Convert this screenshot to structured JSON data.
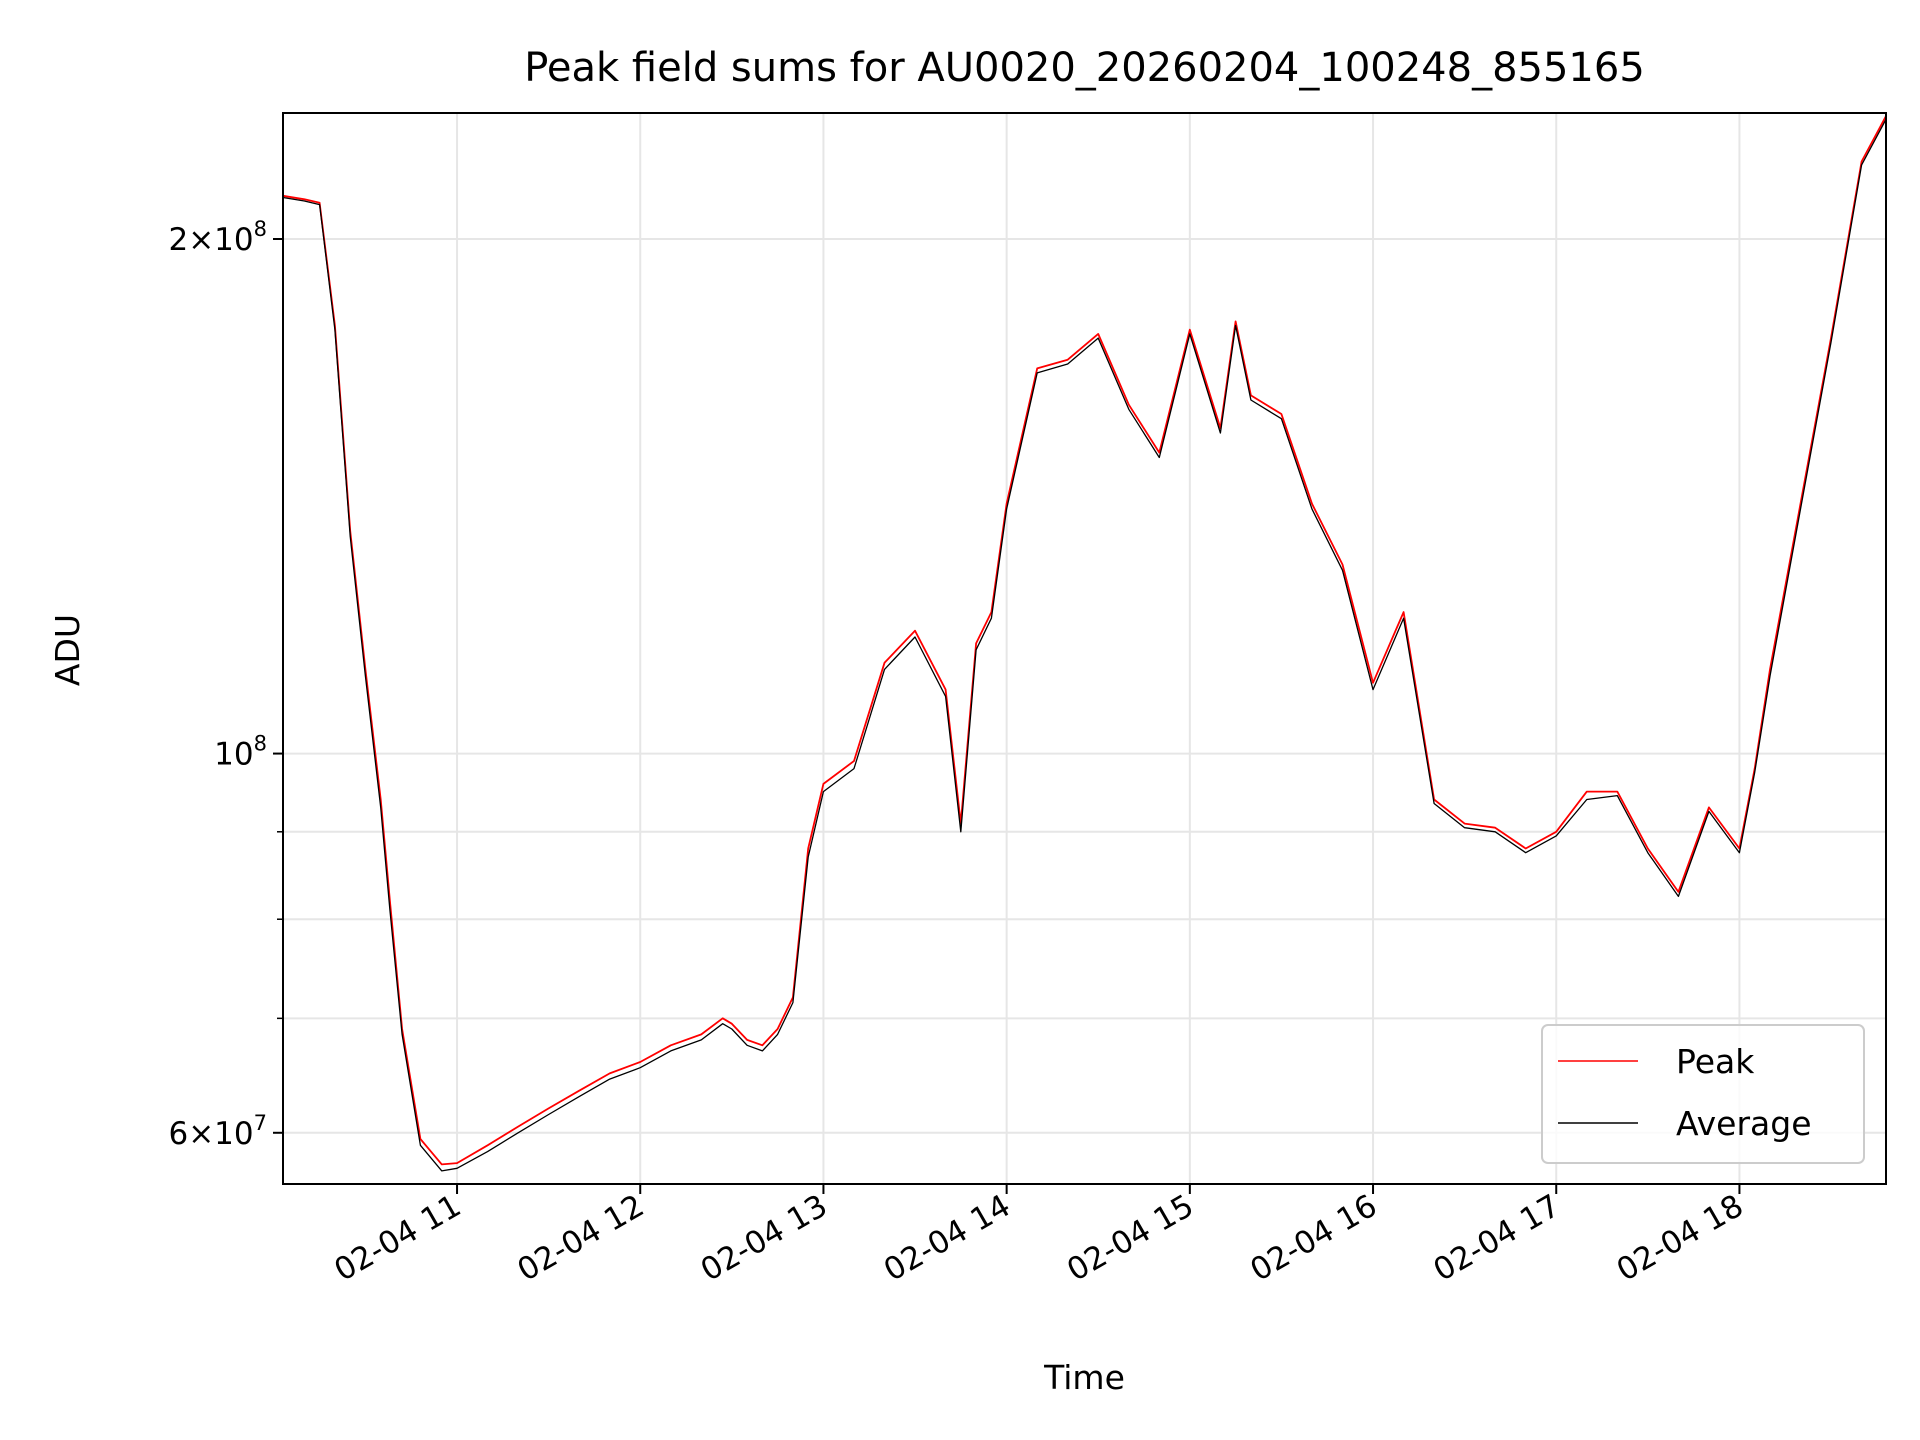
{
  "chart_data": {
    "type": "line",
    "title": "Peak field sums for AU0020_20260204_100248_855165",
    "xlabel": "Time",
    "ylabel": "ADU",
    "yscale": "log",
    "ylim": [
      56000000,
      237000000
    ],
    "xlim": [
      "02-04 10:03",
      "02-04 18:48"
    ],
    "grid": true,
    "legend_position": "lower-right",
    "x_ticks": [
      "02-04 11",
      "02-04 12",
      "02-04 13",
      "02-04 14",
      "02-04 15",
      "02-04 16",
      "02-04 17",
      "02-04 18"
    ],
    "y_ticks": [
      {
        "value": 200000000,
        "label": "2×10",
        "exp": "8"
      },
      {
        "value": 100000000,
        "label": "10",
        "exp": "8"
      },
      {
        "value": 60000000,
        "label": "6×10",
        "exp": "7"
      }
    ],
    "y_minor_ticks": [
      70000000,
      80000000,
      90000000
    ],
    "x": [
      "10:03",
      "10:10",
      "10:15",
      "10:20",
      "10:25",
      "10:30",
      "10:35",
      "10:38",
      "10:42",
      "10:48",
      "10:55",
      "11:00",
      "11:10",
      "11:20",
      "11:30",
      "11:40",
      "11:50",
      "12:00",
      "12:10",
      "12:20",
      "12:27",
      "12:30",
      "12:35",
      "12:40",
      "12:45",
      "12:50",
      "12:55",
      "13:00",
      "13:10",
      "13:20",
      "13:30",
      "13:40",
      "13:45",
      "13:50",
      "13:55",
      "14:00",
      "14:10",
      "14:20",
      "14:30",
      "14:40",
      "14:50",
      "15:00",
      "15:10",
      "15:15",
      "15:20",
      "15:30",
      "15:40",
      "15:50",
      "16:00",
      "16:10",
      "16:20",
      "16:30",
      "16:40",
      "16:50",
      "17:00",
      "17:10",
      "17:20",
      "17:30",
      "17:40",
      "17:50",
      "18:00",
      "18:05",
      "18:10",
      "18:20",
      "18:30",
      "18:40",
      "18:48"
    ],
    "series": [
      {
        "name": "Peak",
        "color": "#ff0000",
        "values": [
          212000000,
          211000000,
          210000000,
          178000000,
          135000000,
          112000000,
          94000000,
          82000000,
          69000000,
          59500000,
          57500000,
          57600000,
          59000000,
          60500000,
          62000000,
          63500000,
          65000000,
          66000000,
          67500000,
          68500000,
          70000000,
          69500000,
          68000000,
          67500000,
          69000000,
          72000000,
          88000000,
          96000000,
          99000000,
          113000000,
          118000000,
          109000000,
          91000000,
          116000000,
          121000000,
          140000000,
          168000000,
          170000000,
          176000000,
          160000000,
          150000000,
          177000000,
          155000000,
          179000000,
          162000000,
          158000000,
          140000000,
          129000000,
          110000000,
          121000000,
          94000000,
          91000000,
          90500000,
          88000000,
          90000000,
          95000000,
          95000000,
          88000000,
          83000000,
          93000000,
          88000000,
          98000000,
          112000000,
          140000000,
          175000000,
          222000000,
          236000000
        ]
      },
      {
        "name": "Average",
        "color": "#000000",
        "values": [
          211500000,
          210500000,
          209500000,
          177000000,
          134000000,
          111000000,
          93000000,
          81000000,
          68500000,
          59000000,
          57000000,
          57200000,
          58500000,
          60000000,
          61500000,
          63000000,
          64500000,
          65500000,
          67000000,
          68000000,
          69500000,
          69000000,
          67500000,
          67000000,
          68500000,
          71500000,
          87000000,
          95000000,
          98000000,
          112000000,
          117000000,
          108000000,
          90000000,
          115000000,
          120000000,
          139000000,
          167000000,
          169000000,
          175000000,
          159000000,
          149000000,
          176000000,
          154000000,
          178000000,
          161000000,
          157000000,
          139000000,
          128000000,
          109000000,
          120000000,
          93500000,
          90500000,
          90000000,
          87500000,
          89500000,
          94000000,
          94500000,
          87500000,
          82500000,
          92500000,
          87500000,
          97500000,
          111000000,
          139000000,
          174000000,
          221000000,
          235000000
        ]
      }
    ]
  }
}
